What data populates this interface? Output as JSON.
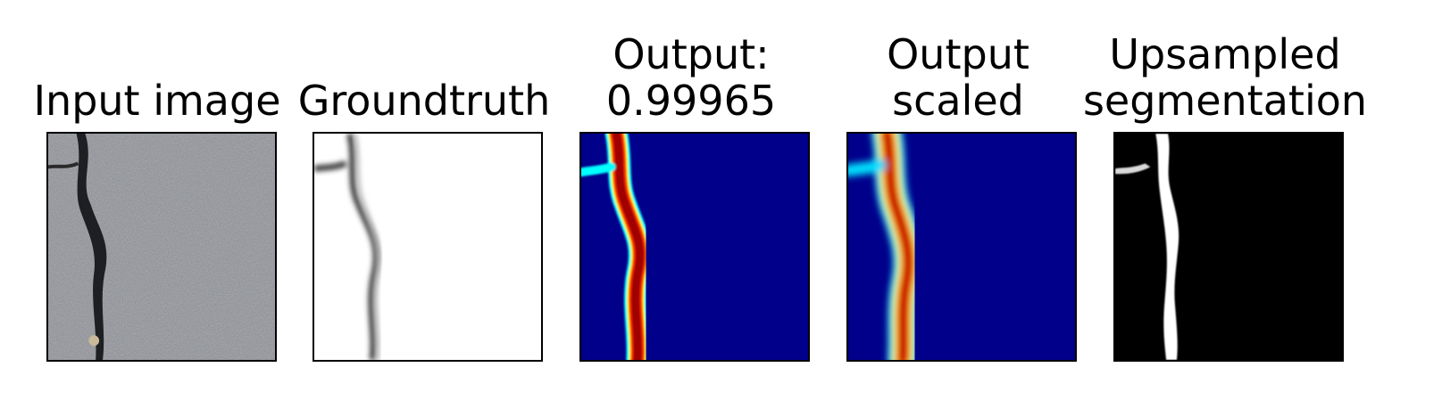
{
  "panels": [
    {
      "title": "Input image",
      "image": "asphalt-crack-photo"
    },
    {
      "title": "Groundtruth",
      "image": "crack-groundtruth-mask"
    },
    {
      "title": "Output:\n0.99965",
      "image": "crack-heatmap-jet"
    },
    {
      "title": "Output\nscaled",
      "image": "crack-heatmap-jet-scaled"
    },
    {
      "title": "Upsampled\nsegmentation",
      "image": "crack-binary-segmentation"
    }
  ],
  "colors": {
    "asphalt": "#8d9094",
    "jet_low": "#00008b",
    "jet_high": "#8b0000",
    "mask_line": "#3a3a3a"
  }
}
